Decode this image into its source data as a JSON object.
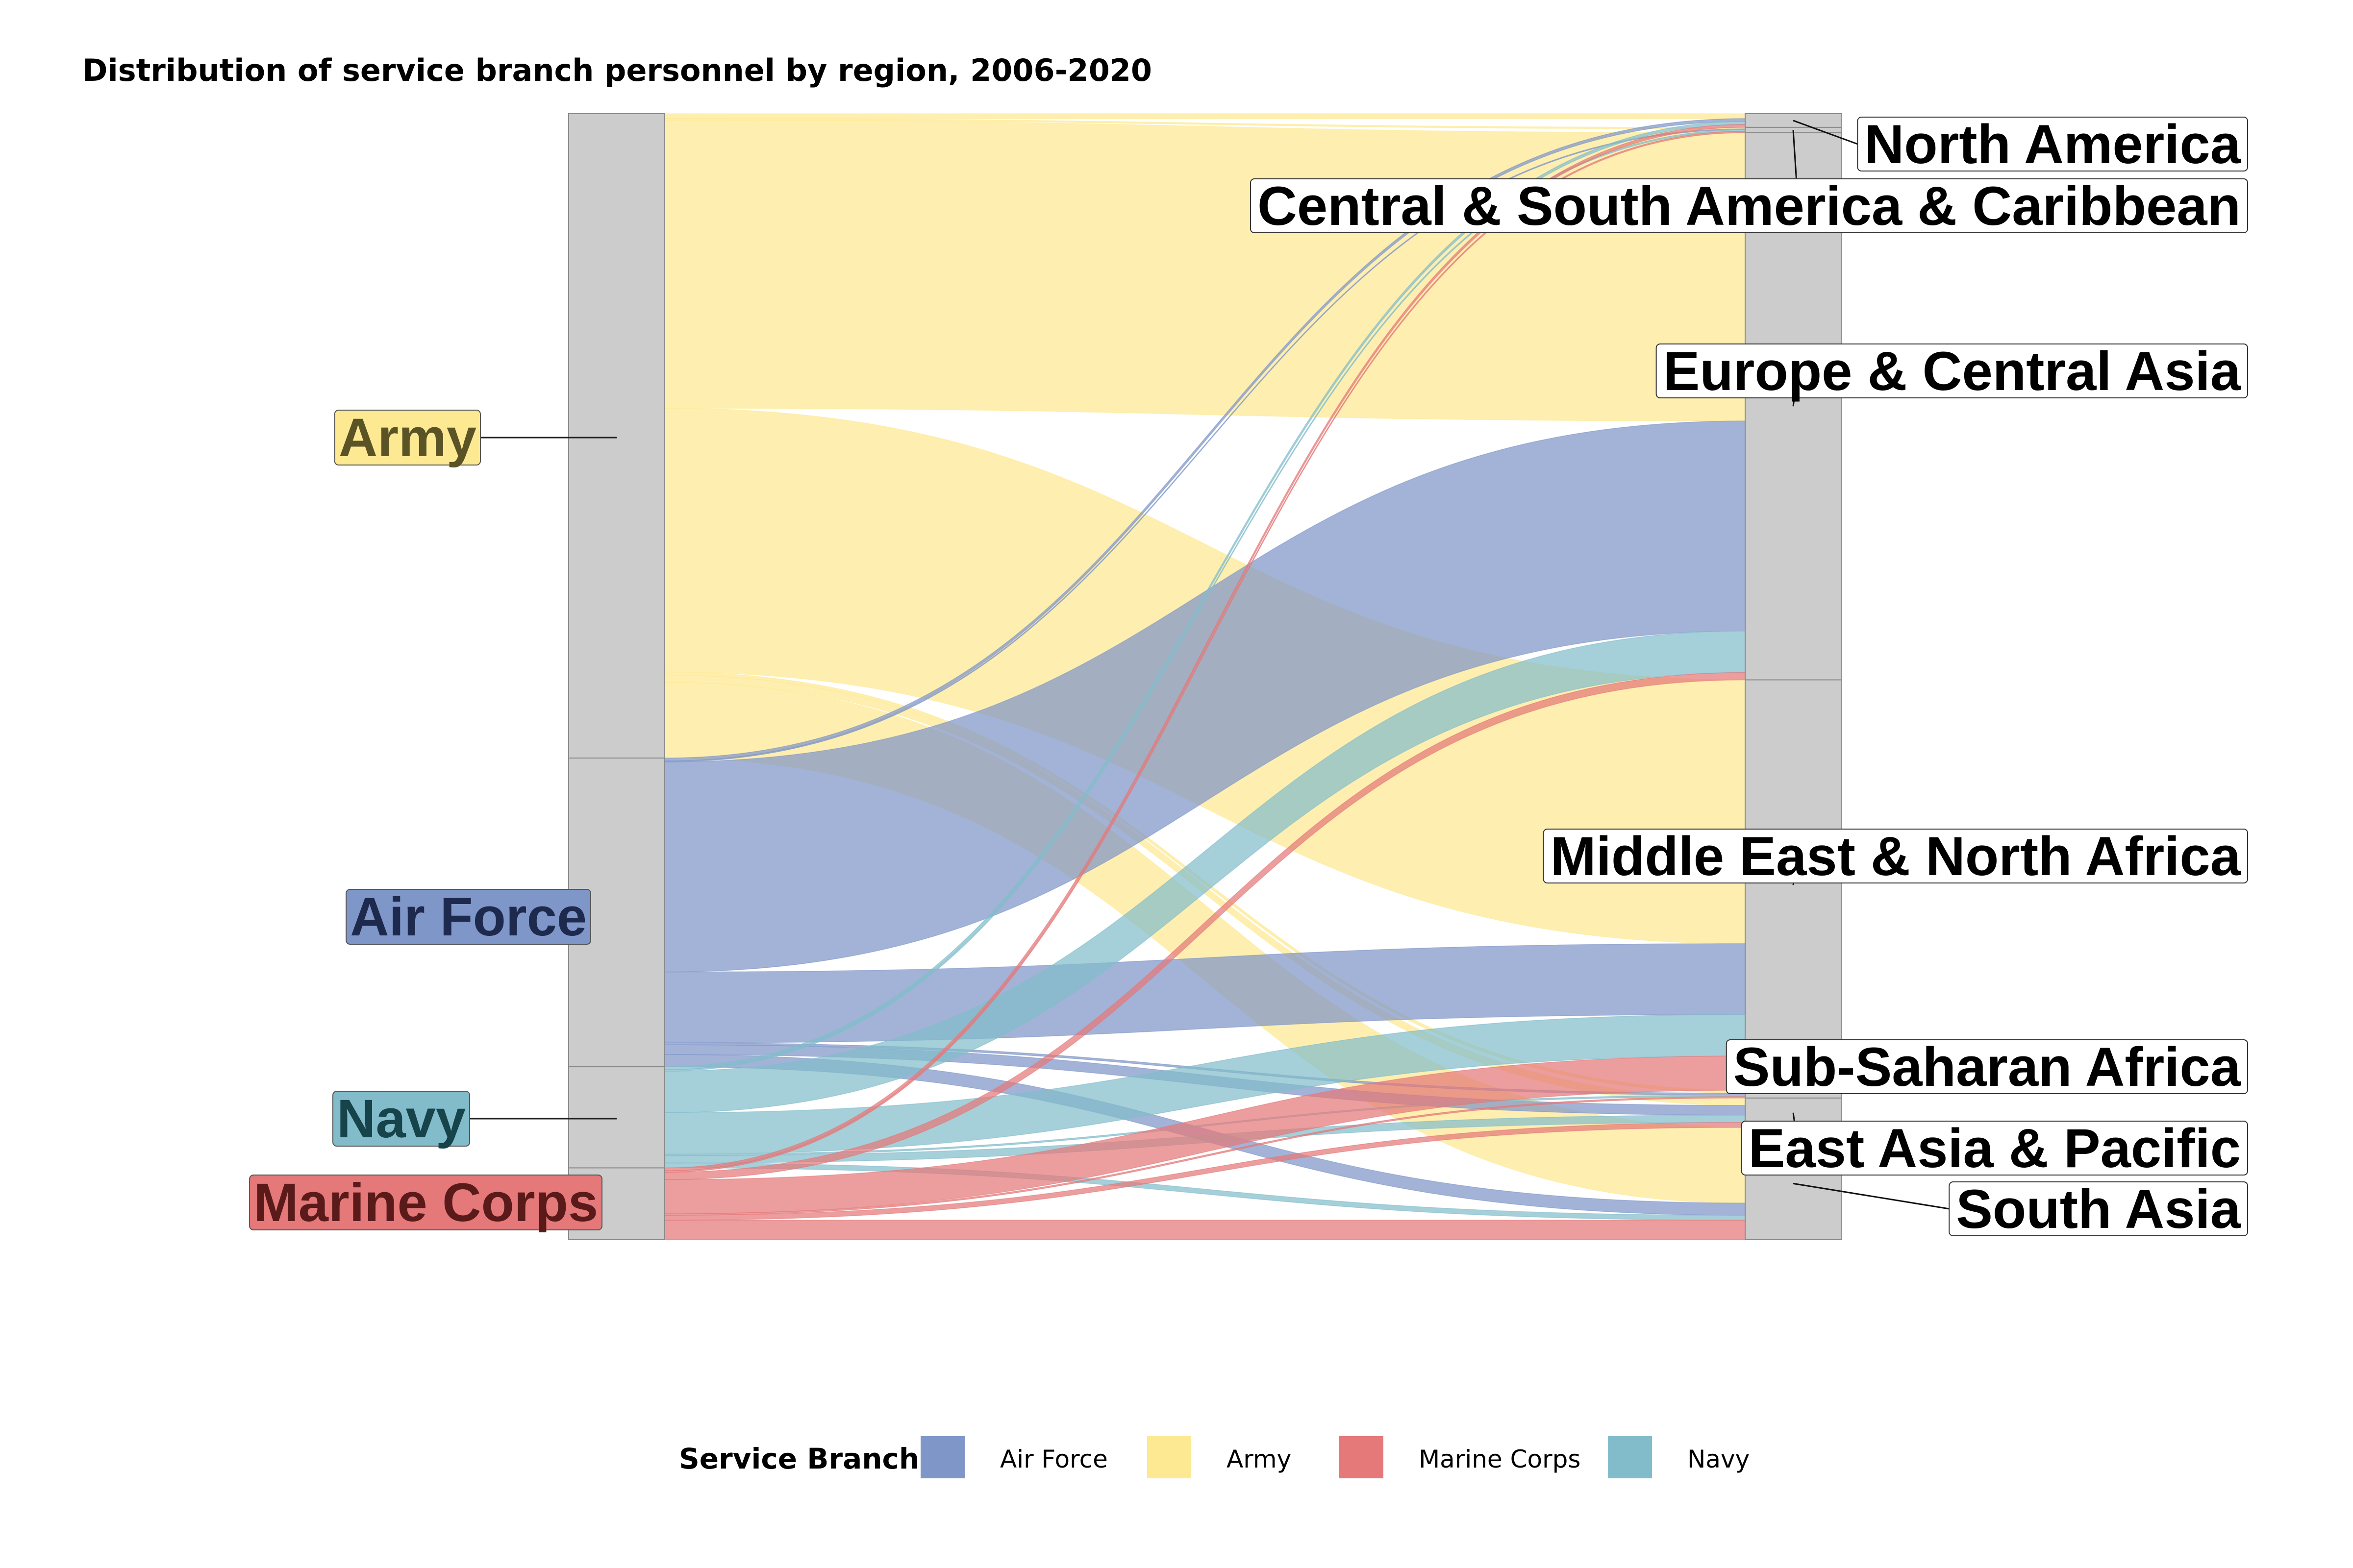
{
  "chart_data": {
    "type": "alluvial",
    "title": "Distribution of service branch personnel by region, 2006-2020",
    "sources": [
      "Army",
      "Air Force",
      "Navy",
      "Marine Corps"
    ],
    "targets": [
      "North America",
      "Central & South America & Caribbean",
      "Europe & Central Asia",
      "Middle East & North Africa",
      "Sub-Saharan Africa",
      "East Asia & Pacific",
      "South Asia"
    ],
    "flows": [
      {
        "source": "Army",
        "target": "North America",
        "value": 1.0
      },
      {
        "source": "Army",
        "target": "Central & South America & Caribbean",
        "value": 0.3
      },
      {
        "source": "Army",
        "target": "Europe & Central Asia",
        "value": 59.0
      },
      {
        "source": "Army",
        "target": "Middle East & North Africa",
        "value": 54.0
      },
      {
        "source": "Army",
        "target": "Sub-Saharan Africa",
        "value": 0.6
      },
      {
        "source": "Army",
        "target": "East Asia & Pacific",
        "value": 1.5
      },
      {
        "source": "Army",
        "target": "South Asia",
        "value": 15.5
      },
      {
        "source": "Air Force",
        "target": "North America",
        "value": 0.6
      },
      {
        "source": "Air Force",
        "target": "Central & South America & Caribbean",
        "value": 0.2
      },
      {
        "source": "Air Force",
        "target": "Europe & Central Asia",
        "value": 43.0
      },
      {
        "source": "Air Force",
        "target": "Middle East & North Africa",
        "value": 14.5
      },
      {
        "source": "Air Force",
        "target": "Sub-Saharan Africa",
        "value": 0.4
      },
      {
        "source": "Air Force",
        "target": "East Asia & Pacific",
        "value": 2.0
      },
      {
        "source": "Air Force",
        "target": "South Asia",
        "value": 2.5
      },
      {
        "source": "Navy",
        "target": "North America",
        "value": 0.6
      },
      {
        "source": "Navy",
        "target": "Central & South America & Caribbean",
        "value": 0.3
      },
      {
        "source": "Navy",
        "target": "Europe & Central Asia",
        "value": 8.5
      },
      {
        "source": "Navy",
        "target": "Middle East & North Africa",
        "value": 8.5
      },
      {
        "source": "Navy",
        "target": "Sub-Saharan Africa",
        "value": 0.3
      },
      {
        "source": "Navy",
        "target": "East Asia & Pacific",
        "value": 1.5
      },
      {
        "source": "Navy",
        "target": "South Asia",
        "value": 1.0
      },
      {
        "source": "Marine Corps",
        "target": "North America",
        "value": 0.6
      },
      {
        "source": "Marine Corps",
        "target": "Central & South America & Caribbean",
        "value": 0.3
      },
      {
        "source": "Marine Corps",
        "target": "Europe & Central Asia",
        "value": 1.5
      },
      {
        "source": "Marine Corps",
        "target": "Middle East & North Africa",
        "value": 7.0
      },
      {
        "source": "Marine Corps",
        "target": "Sub-Saharan Africa",
        "value": 0.3
      },
      {
        "source": "Marine Corps",
        "target": "East Asia & Pacific",
        "value": 1.0
      },
      {
        "source": "Marine Corps",
        "target": "South Asia",
        "value": 4.0
      }
    ],
    "colors": {
      "Air Force": "#7f96c8",
      "Army": "#fde992",
      "Marine Corps": "#e57879",
      "Navy": "#82bccb"
    },
    "label_colors": {
      "Army": "#5a5325",
      "Air Force": "#1e2a4d",
      "Navy": "#17434b",
      "Marine Corps": "#5a1a1a"
    },
    "legend": {
      "title": "Service Branch",
      "position": "bottom",
      "entries": [
        "Air Force",
        "Army",
        "Marine Corps",
        "Navy"
      ]
    }
  }
}
